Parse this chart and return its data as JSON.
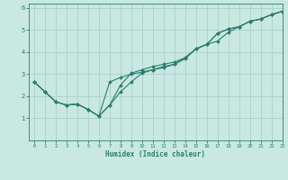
{
  "xlabel": "Humidex (Indice chaleur)",
  "xlim": [
    -0.5,
    23
  ],
  "ylim": [
    0,
    6.2
  ],
  "xticks": [
    0,
    1,
    2,
    3,
    4,
    5,
    6,
    7,
    8,
    9,
    10,
    11,
    12,
    13,
    14,
    15,
    16,
    17,
    18,
    19,
    20,
    21,
    22,
    23
  ],
  "yticks": [
    1,
    2,
    3,
    4,
    5,
    6
  ],
  "bg_color": "#c8e8e0",
  "line_color": "#2e7d6e",
  "grid_color": "#a8cccc",
  "line1_x": [
    0,
    1,
    2,
    3,
    4,
    5,
    6,
    7,
    8,
    9,
    10,
    11,
    12,
    13,
    14,
    15,
    16,
    17,
    18,
    19,
    20,
    21,
    22,
    23
  ],
  "line1_y": [
    2.65,
    2.2,
    1.75,
    1.6,
    1.65,
    1.4,
    1.1,
    2.65,
    2.85,
    3.0,
    3.1,
    3.2,
    3.3,
    3.45,
    3.7,
    4.15,
    4.35,
    4.85,
    5.05,
    5.15,
    5.4,
    5.5,
    5.7,
    5.85
  ],
  "line2_x": [
    0,
    1,
    2,
    3,
    4,
    5,
    6,
    7,
    8,
    9,
    10,
    11,
    12,
    13,
    14,
    15,
    16,
    17,
    18,
    19,
    20,
    21,
    22,
    23
  ],
  "line2_y": [
    2.65,
    2.2,
    1.75,
    1.6,
    1.65,
    1.4,
    1.1,
    1.6,
    2.2,
    2.65,
    3.05,
    3.2,
    3.35,
    3.45,
    3.75,
    4.15,
    4.35,
    4.5,
    4.9,
    5.15,
    5.4,
    5.5,
    5.7,
    5.85
  ],
  "line3_x": [
    0,
    1,
    2,
    3,
    4,
    5,
    6,
    7,
    8,
    9,
    10,
    11,
    12,
    13,
    14,
    15,
    16,
    17,
    18,
    19,
    20,
    21,
    22,
    23
  ],
  "line3_y": [
    2.65,
    2.2,
    1.75,
    1.6,
    1.65,
    1.4,
    1.1,
    1.6,
    2.5,
    3.05,
    3.2,
    3.35,
    3.45,
    3.55,
    3.75,
    4.15,
    4.35,
    4.85,
    5.05,
    5.15,
    5.4,
    5.5,
    5.7,
    5.85
  ]
}
